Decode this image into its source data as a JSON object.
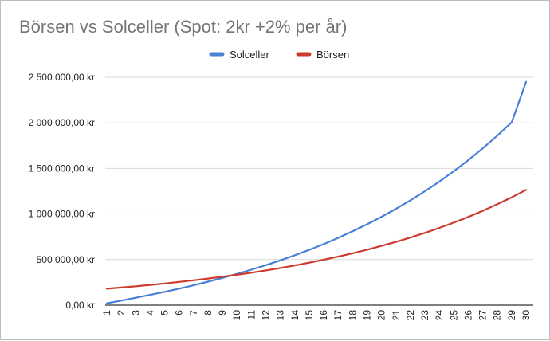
{
  "chart_data": {
    "type": "line",
    "title": "Börsen vs Solceller (Spot: 2kr +2% per år)",
    "xlabel": "",
    "ylabel": "",
    "legend_position": "top-center",
    "grid": true,
    "x": [
      1,
      2,
      3,
      4,
      5,
      6,
      7,
      8,
      9,
      10,
      11,
      12,
      13,
      14,
      15,
      16,
      17,
      18,
      19,
      20,
      21,
      22,
      23,
      24,
      25,
      26,
      27,
      28,
      29,
      30
    ],
    "ylim": [
      0,
      2500000
    ],
    "yticks": [
      0,
      500000,
      1000000,
      1500000,
      2000000,
      2500000
    ],
    "ytick_labels": [
      "0,00 kr",
      "500 000,00 kr",
      "1 000 000,00 kr",
      "1 500 000,00 kr",
      "2 000 000,00 kr",
      "2 500 000,00 kr"
    ],
    "series": [
      {
        "name": "Solceller",
        "color": "#4a7fd6",
        "values": [
          20000,
          50000,
          81000,
          113000,
          146000,
          181000,
          218000,
          258000,
          299000,
          343000,
          389000,
          439000,
          491000,
          547000,
          607000,
          670000,
          738000,
          810000,
          887000,
          969000,
          1057000,
          1150000,
          1250000,
          1356000,
          1469000,
          1590000,
          1720000,
          1858000,
          2005000,
          2450000
        ]
      },
      {
        "name": "Börsen",
        "color": "#cc3b2e",
        "values": [
          180000,
          193000,
          207000,
          222000,
          238000,
          255000,
          273000,
          292000,
          312000,
          333000,
          356000,
          381000,
          407000,
          435000,
          466000,
          498000,
          532000,
          569000,
          608000,
          650000,
          694000,
          742000,
          793000,
          848000,
          906000,
          968000,
          1035000,
          1107000,
          1183000,
          1265000
        ]
      }
    ]
  }
}
